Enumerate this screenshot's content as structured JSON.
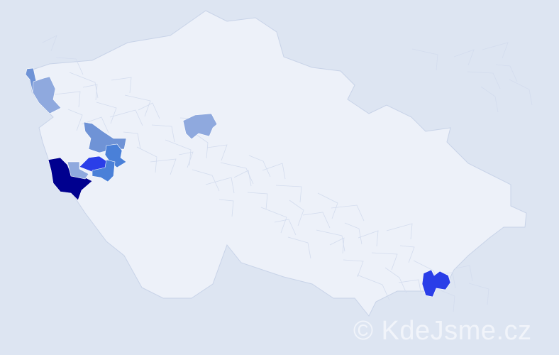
{
  "watermark": "© KdeJsme.cz",
  "colors": {
    "background": "#dde5f2",
    "district_default": "#edf1f9",
    "district_border": "#c8d3e8",
    "level_1": "#8fa9de",
    "level_2": "#6f93d6",
    "level_3": "#4a80d8",
    "level_4": "#2a3ee8",
    "level_5": "#00008f"
  },
  "highlighted_districts": [
    {
      "area": "far-west-north",
      "level": 2
    },
    {
      "area": "northwest",
      "level": 1
    },
    {
      "area": "west-central-north",
      "level": 2
    },
    {
      "area": "west-central-east",
      "level": 3
    },
    {
      "area": "west-central",
      "level": 4
    },
    {
      "area": "southwest",
      "level": 5
    },
    {
      "area": "southwest-inner",
      "level": 1
    },
    {
      "area": "southwest-east",
      "level": 3
    },
    {
      "area": "central",
      "level": 1
    },
    {
      "area": "southeast",
      "level": 4
    }
  ]
}
